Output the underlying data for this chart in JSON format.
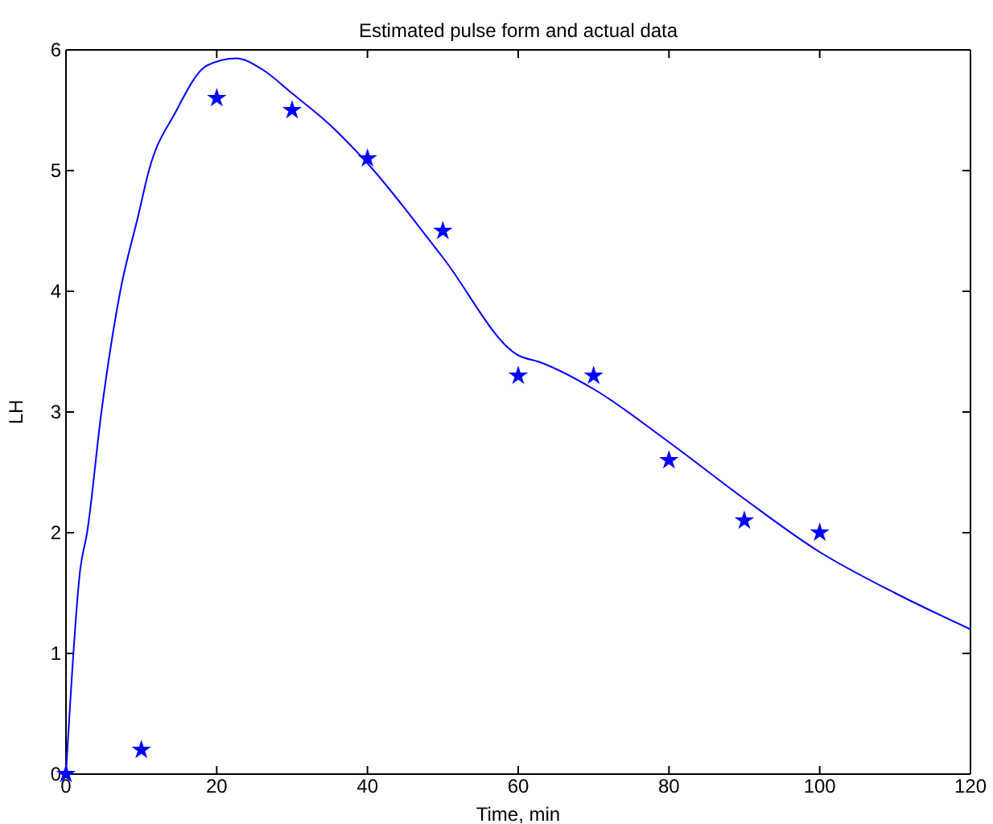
{
  "chart_data": {
    "type": "line",
    "title": "Estimated pulse form and actual data",
    "xlabel": "Time, min",
    "ylabel": "LH",
    "xlim": [
      0,
      120
    ],
    "xticks": [
      0,
      20,
      40,
      60,
      80,
      100,
      120
    ],
    "ylim": [
      0,
      6
    ],
    "yticks": [
      0,
      1,
      2,
      3,
      4,
      5,
      6
    ],
    "grid": false,
    "series": [
      {
        "color": "#0000ff",
        "marker": "none",
        "line_style": "solid",
        "x": [
          0,
          1.9,
          2.8,
          4.7,
          7.2,
          9.6,
          11,
          14.5,
          18.7,
          22.6,
          26,
          30,
          35,
          40,
          50,
          60,
          63,
          70,
          80,
          90,
          100,
          110,
          120
        ],
        "values": [
          0,
          1.7,
          2.0,
          3.0,
          4.0,
          4.63,
          5.0,
          5.48,
          5.87,
          5.93,
          5.84,
          5.64,
          5.38,
          5.06,
          4.28,
          3.47,
          3.41,
          3.19,
          2.75,
          2.28,
          1.84,
          1.5,
          1.2
        ]
      },
      {
        "type": "scatter",
        "color": "#0000ff",
        "marker": "star",
        "x": [
          0,
          10,
          20,
          30,
          40,
          50,
          60,
          70,
          80,
          90,
          100
        ],
        "values": [
          0,
          0.2,
          5.6,
          5.5,
          5.1,
          4.5,
          3.3,
          3.3,
          2.6,
          2.1,
          2.0
        ]
      }
    ]
  }
}
